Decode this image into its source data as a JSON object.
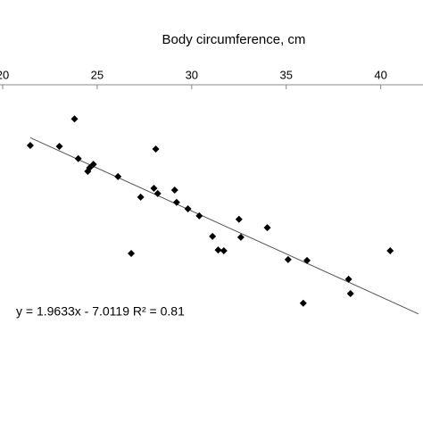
{
  "chart_data": {
    "type": "scatter",
    "x_label": "Body circumference, cm",
    "x": [
      21.46,
      23.0,
      23.8,
      24.0,
      24.5,
      24.6,
      24.8,
      26.1,
      28.1,
      28.0,
      28.2,
      27.3,
      29.1,
      29.2,
      29.8,
      30.4,
      26.8,
      31.1,
      31.4,
      31.7,
      32.5,
      32.6,
      34.0,
      35.1,
      36.1,
      40.5,
      35.9,
      38.3,
      38.4
    ],
    "values": [
      36.9,
      37.1,
      30.8,
      39.9,
      42.8,
      42.0,
      41.2,
      44.0,
      37.7,
      46.7,
      47.9,
      48.7,
      47.1,
      49.9,
      51.4,
      53.0,
      61.6,
      57.7,
      60.8,
      61.0,
      53.8,
      57.9,
      55.7,
      63.0,
      63.2,
      61.0,
      73.0,
      67.5,
      70.8
    ],
    "color": "#000000",
    "xlim": [
      20,
      42
    ],
    "xticks": [
      20,
      25,
      30,
      35,
      40
    ],
    "ylim": [
      23,
      100
    ],
    "trendline": {
      "slope": 1.9633,
      "intercept": -7.0119,
      "label": "y = 1.9633x - 7.0119  R² = 0.81"
    }
  }
}
